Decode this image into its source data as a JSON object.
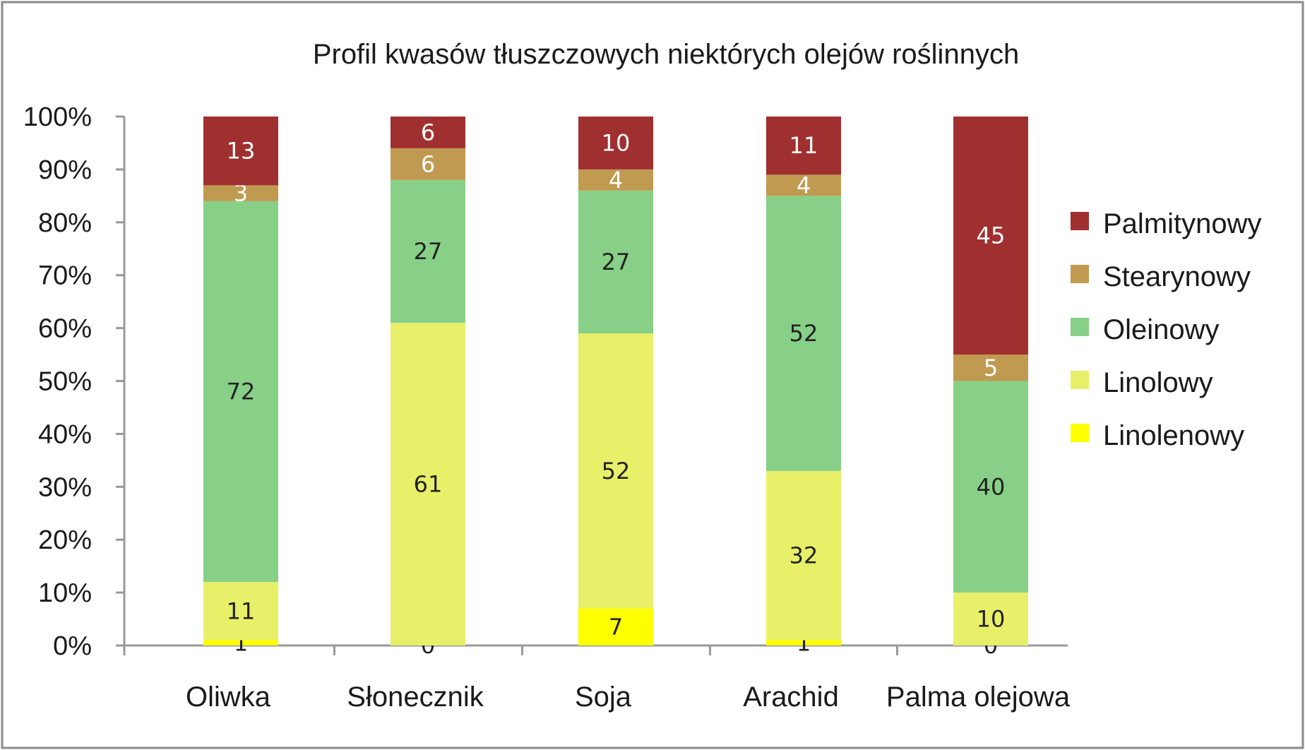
{
  "chart_data": {
    "type": "bar",
    "stacked": true,
    "title": "Profil kwasów tłuszczowych niektórych olejów roślinnych",
    "categories": [
      "Oliwka",
      "Słonecznik",
      "Soja",
      "Arachid",
      "Palma olejowa"
    ],
    "series": [
      {
        "name": "Linolenowy",
        "color": "#ffff00",
        "label_color": "#222222",
        "values": [
          1,
          0,
          7,
          1,
          0
        ]
      },
      {
        "name": "Linolowy",
        "color": "#e8f06a",
        "label_color": "#222222",
        "values": [
          11,
          61,
          52,
          32,
          10
        ]
      },
      {
        "name": "Oleinowy",
        "color": "#88d088",
        "label_color": "#222222",
        "values": [
          72,
          27,
          27,
          52,
          40
        ]
      },
      {
        "name": "Stearynowy",
        "color": "#c09a50",
        "label_color": "#ffffff",
        "values": [
          3,
          6,
          4,
          4,
          5
        ]
      },
      {
        "name": "Palmitynowy",
        "color": "#a03030",
        "label_color": "#ffffff",
        "values": [
          13,
          6,
          10,
          11,
          45
        ]
      }
    ],
    "legend_order": [
      "Palmitynowy",
      "Stearynowy",
      "Oleinowy",
      "Linolowy",
      "Linolenowy"
    ],
    "yticks": [
      "0%",
      "10%",
      "20%",
      "30%",
      "40%",
      "50%",
      "60%",
      "70%",
      "80%",
      "90%",
      "100%"
    ],
    "ylim": [
      0,
      100
    ],
    "xlabel": "",
    "ylabel": "",
    "grid": false,
    "legend_position": "right"
  }
}
